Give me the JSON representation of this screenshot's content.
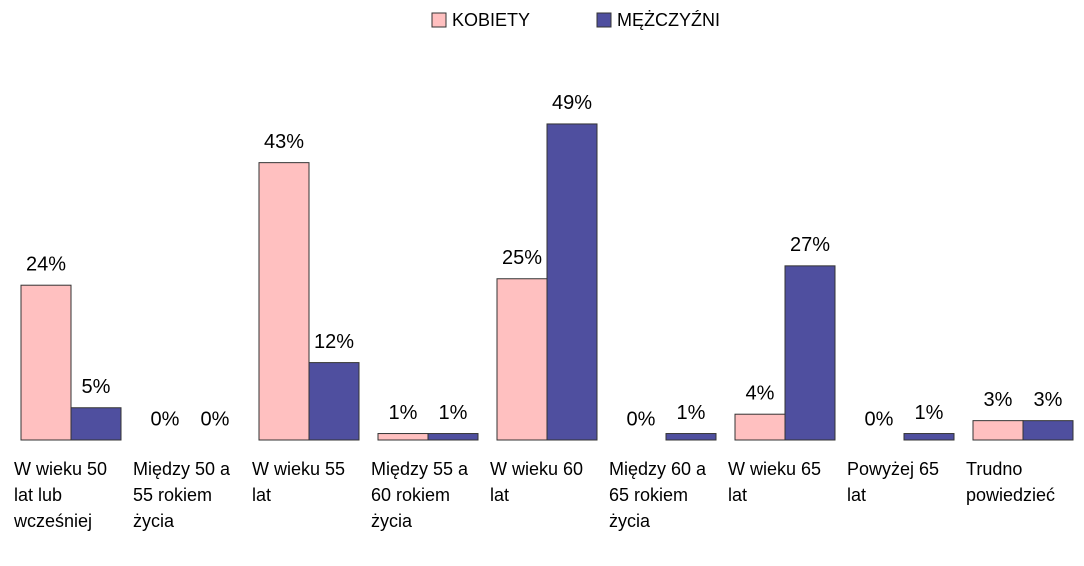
{
  "chart_data": {
    "type": "bar",
    "categories": [
      "W wieku 50 lat lub wcześniej",
      "Między 50 a 55 rokiem życia",
      "W wieku 55 lat",
      "Między 55 a 60 rokiem życia",
      "W wieku 60 lat",
      "Między 60 a 65 rokiem życia",
      "W wieku 65 lat",
      "Powyżej 65 lat",
      "Trudno powiedzieć"
    ],
    "series": [
      {
        "name": "KOBIETY",
        "color": "#ffc0c0",
        "values": [
          24,
          0,
          43,
          1,
          25,
          0,
          4,
          0,
          3
        ],
        "value_labels": [
          "24%",
          "0%",
          "43%",
          "1%",
          "25%",
          "0%",
          "4%",
          "0%",
          "3%"
        ]
      },
      {
        "name": "MĘŻCZYŹNI",
        "color": "#4f4f9f",
        "values": [
          5,
          0,
          12,
          1,
          49,
          1,
          27,
          1,
          3
        ],
        "value_labels": [
          "5%",
          "0%",
          "12%",
          "1%",
          "49%",
          "1%",
          "27%",
          "1%",
          "3%"
        ]
      }
    ],
    "legend": "top"
  }
}
